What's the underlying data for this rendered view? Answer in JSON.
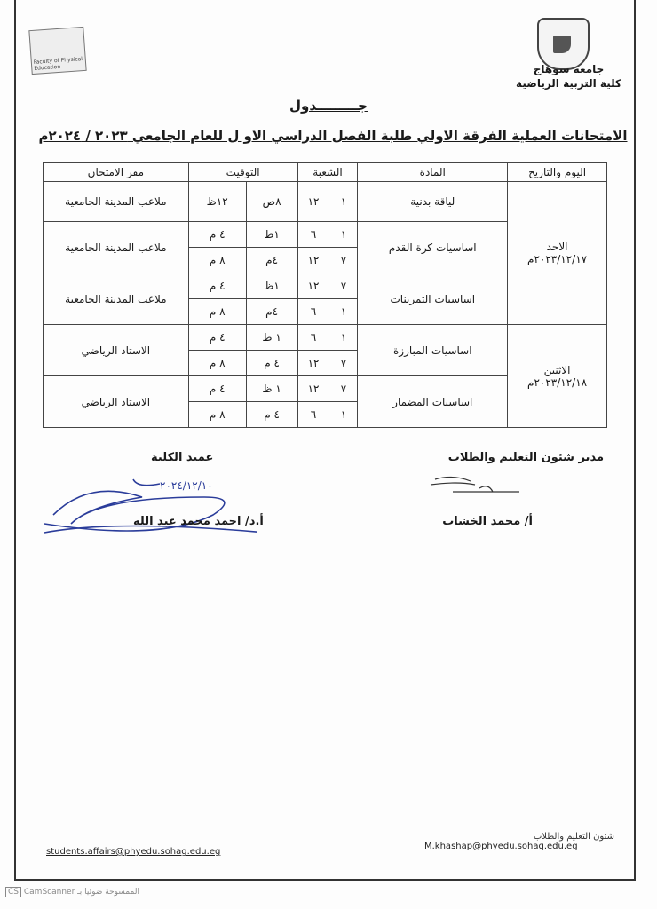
{
  "header": {
    "university": "جامعه سوهاج",
    "faculty": "كلية التربية الرياضية",
    "left_logo_text": "Faculty of Physical Education"
  },
  "title": "جـــــــــدول",
  "subtitle": "الامتحانات العملية الفرقة الاولي طلبة الفصل الدراسي الاو ل للعام الجامعي ٢٠٢٣ / ٢٠٢٤م",
  "table": {
    "headers": [
      "اليوم والتاريخ",
      "المادة",
      "الشعبة",
      "التوقيت",
      "مقر الامتحان"
    ],
    "days": [
      {
        "day": "الاحد",
        "date": "٢٠٢٣/١٢/١٧م"
      },
      {
        "day": "الاثنين",
        "date": "٢٠٢٣/١٢/١٨م"
      }
    ],
    "subjects": [
      {
        "name": "لياقة بدنية",
        "place": "ملاعب المدينة الجامعية",
        "rows": [
          {
            "from_group": "١",
            "to_group": "١٢",
            "from_time": "٨ص",
            "to_time": "١٢ظ"
          }
        ]
      },
      {
        "name": "اساسيات كرة القدم",
        "place": "ملاعب المدينة الجامعية",
        "rows": [
          {
            "from_group": "١",
            "to_group": "٦",
            "from_time": "١ظ",
            "to_time": "٤ م"
          },
          {
            "from_group": "٧",
            "to_group": "١٢",
            "from_time": "٤م",
            "to_time": "٨ م"
          }
        ]
      },
      {
        "name": "اساسيات التمرينات",
        "place": "ملاعب المدينة الجامعية",
        "rows": [
          {
            "from_group": "٧",
            "to_group": "١٢",
            "from_time": "١ظ",
            "to_time": "٤ م"
          },
          {
            "from_group": "١",
            "to_group": "٦",
            "from_time": "٤م",
            "to_time": "٨ م"
          }
        ]
      },
      {
        "name": "اساسيات المبارزة",
        "place": "الاستاد الرياضي",
        "rows": [
          {
            "from_group": "١",
            "to_group": "٦",
            "from_time": "١ ظ",
            "to_time": "٤ م"
          },
          {
            "from_group": "٧",
            "to_group": "١٢",
            "from_time": "٤ م",
            "to_time": "٨ م"
          }
        ]
      },
      {
        "name": "اساسيات المضمار",
        "place": "الاستاد الرياضي",
        "rows": [
          {
            "from_group": "٧",
            "to_group": "١٢",
            "from_time": "١ ظ",
            "to_time": "٤ م"
          },
          {
            "from_group": "١",
            "to_group": "٦",
            "from_time": "٤ م",
            "to_time": "٨ م"
          }
        ]
      }
    ]
  },
  "signatures": {
    "right_title": "مدير شئون التعليم والطلاب",
    "right_name": "أ/ محمد الخشاب",
    "left_title": "عميد الكلية",
    "left_name": "أ.د/ احمد محمد عبد الله",
    "left_handwritten_date": "٢٠٢٤/١٢/١٠"
  },
  "footer": {
    "dept": "شئون التعليم والطلاب",
    "right_email": "M.khashap@phyedu.sohag.edu.eg",
    "left_email": "students.affairs@phyedu.sohag.edu.eg"
  },
  "watermark": {
    "badge": "CS",
    "text": "CamScanner الممسوحة ضوئيا بـ"
  }
}
